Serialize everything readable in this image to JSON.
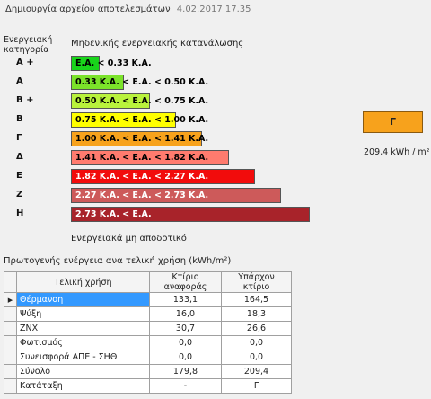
{
  "header": {
    "title": "Δημιουργία αρχείου αποτελεσμάτων",
    "timestamp": "4.02.2017 17.35"
  },
  "scale": {
    "category_heading_line1": "Ενεργειακή",
    "category_heading_line2": "κατηγορία",
    "zero_consumption_label": "Μηδενικής ενεργειακής κατανάλωσης",
    "nonzero_label": "Ενεργειακά μη αποδοτικό",
    "categories": [
      {
        "letter": "A +",
        "label": "E.A. < 0.33 K.A.",
        "color": "#19d41b",
        "width_fraction": 0.12
      },
      {
        "letter": "A",
        "label": "0.33 K.A. < E.A. < 0.50 K.A.",
        "color": "#7be32a",
        "width_fraction": 0.22
      },
      {
        "letter": "B +",
        "label": "0.50 K.A. < E.A. < 0.75 K.A.",
        "color": "#b9f23c",
        "width_fraction": 0.33
      },
      {
        "letter": "B",
        "label": "0.75 K.A. < E.A. < 1.00 K.A.",
        "color": "#ffff00",
        "width_fraction": 0.44
      },
      {
        "letter": "Γ",
        "label": "1.00 K.A. < E.A. < 1.41 K.A.",
        "color": "#f7a21c",
        "width_fraction": 0.55
      },
      {
        "letter": "Δ",
        "label": "1.41 K.A. < E.A. < 1.82 K.A.",
        "color": "#ff7b6e",
        "width_fraction": 0.66
      },
      {
        "letter": "E",
        "label": "1.82 K.A. < E.A. < 2.27 K.A.",
        "color": "#f20c0c",
        "width_fraction": 0.77
      },
      {
        "letter": "Z",
        "label": "2.27 K.A. < E.A. < 2.73 K.A.",
        "color": "#cd5a5a",
        "width_fraction": 0.88
      },
      {
        "letter": "H",
        "label": "2.73 K.A. < E.A.",
        "color": "#a8232a",
        "width_fraction": 1.0
      }
    ]
  },
  "result": {
    "category": "Γ",
    "value": "209,4 kWh / m²"
  },
  "primary": {
    "title": "Πρωτογενής ενέργεια ανα τελική χρήση (kWh/m²)",
    "columns": [
      "Τελική χρήση",
      "Κτίριο αναφοράς",
      "Υπάρχον κτίριο"
    ],
    "rows": [
      {
        "use": "Θέρμανση",
        "ref": "133,1",
        "exist": "164,5"
      },
      {
        "use": "Ψύξη",
        "ref": "16,0",
        "exist": "18,3"
      },
      {
        "use": "ZNX",
        "ref": "30,7",
        "exist": "26,6"
      },
      {
        "use": "Φωτισμός",
        "ref": "0,0",
        "exist": "0,0"
      },
      {
        "use": "Συνεισφορά ΑΠΕ - ΣΗΘ",
        "ref": "0,0",
        "exist": "0,0"
      },
      {
        "use": "Σύνολο",
        "ref": "179,8",
        "exist": "209,4"
      },
      {
        "use": "Κατάταξη",
        "ref": "-",
        "exist": "Γ"
      }
    ]
  }
}
